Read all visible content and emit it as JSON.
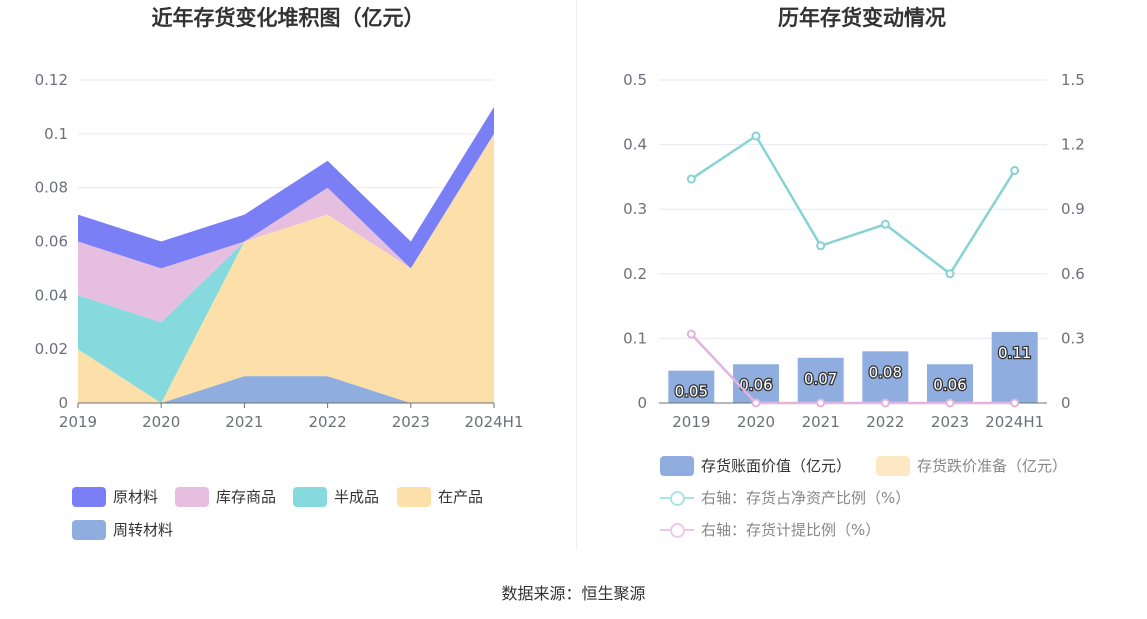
{
  "left_chart": {
    "title": "近年存货变化堆积图（亿元）",
    "legend": [
      {
        "label": "原材料",
        "color": "#7b7ff5"
      },
      {
        "label": "库存商品",
        "color": "#e6bfe0"
      },
      {
        "label": "半成品",
        "color": "#86d9dc"
      },
      {
        "label": "在产品",
        "color": "#fde0a9"
      },
      {
        "label": "周转材料",
        "color": "#8faedf"
      }
    ]
  },
  "right_chart": {
    "title": "历年存货变动情况",
    "legend": [
      {
        "label": "存货账面价值（亿元）",
        "color": "#8faedf",
        "kind": "bar"
      },
      {
        "label": "存货跌价准备（亿元）",
        "color": "#fde8c4",
        "kind": "bar"
      },
      {
        "label": "右轴：存货占净资产比例（%）",
        "color": "#a8e4e6",
        "kind": "line"
      },
      {
        "label": "右轴：存货计提比例（%）",
        "color": "#f1c6ec",
        "kind": "line"
      }
    ]
  },
  "source": "数据来源：恒生聚源",
  "chart_data": [
    {
      "type": "area",
      "stacked": true,
      "title": "近年存货变化堆积图（亿元）",
      "categories": [
        "2019",
        "2020",
        "2021",
        "2022",
        "2023",
        "2024H1"
      ],
      "ylim": [
        0,
        0.12
      ],
      "yticks": [
        "0",
        "0.02",
        "0.04",
        "0.06",
        "0.08",
        "0.1",
        "0.12"
      ],
      "grid": true,
      "legend_position": "bottom",
      "series": [
        {
          "name": "周转材料",
          "color": "#8faedf",
          "values": [
            0,
            0,
            0.01,
            0.01,
            0,
            0
          ]
        },
        {
          "name": "在产品",
          "color": "#fde0a9",
          "values": [
            0.02,
            0,
            0.05,
            0.06,
            0.05,
            0.1
          ]
        },
        {
          "name": "半成品",
          "color": "#86d9dc",
          "values": [
            0.02,
            0.03,
            0,
            0,
            0,
            0
          ]
        },
        {
          "name": "库存商品",
          "color": "#e6bfe0",
          "values": [
            0.02,
            0.02,
            0,
            0.01,
            0,
            0
          ]
        },
        {
          "name": "原材料",
          "color": "#7b7ff5",
          "values": [
            0.01,
            0.01,
            0.01,
            0.01,
            0.01,
            0.01
          ]
        }
      ]
    },
    {
      "type": "bar",
      "title": "历年存货变动情况",
      "categories": [
        "2019",
        "2020",
        "2021",
        "2022",
        "2023",
        "2024H1"
      ],
      "ylim": [
        0,
        0.5
      ],
      "yticks": [
        "0",
        "0.1",
        "0.2",
        "0.3",
        "0.4",
        "0.5"
      ],
      "y2lim": [
        0,
        1.5
      ],
      "y2ticks": [
        "0",
        "0.3",
        "0.6",
        "0.9",
        "1.2",
        "1.5"
      ],
      "grid": true,
      "legend_position": "bottom",
      "series": [
        {
          "name": "存货账面价值（亿元）",
          "type": "bar",
          "axis": "left",
          "color": "#8faedf",
          "values": [
            0.05,
            0.06,
            0.07,
            0.08,
            0.06,
            0.11
          ],
          "labels": [
            "0.05",
            "0.06",
            "0.07",
            "0.08",
            "0.06",
            "0.11"
          ]
        },
        {
          "name": "存货跌价准备（亿元）",
          "type": "bar",
          "axis": "left",
          "color": "#fde8c4",
          "values": [
            0,
            0,
            0,
            0,
            0,
            0
          ]
        },
        {
          "name": "右轴：存货占净资产比例（%）",
          "type": "line",
          "axis": "right",
          "color": "#86d3d6",
          "values": [
            1.04,
            1.24,
            0.73,
            0.83,
            0.6,
            1.08
          ]
        },
        {
          "name": "右轴：存货计提比例（%）",
          "type": "line",
          "axis": "right",
          "color": "#e3b4df",
          "values": [
            0.32,
            0,
            0,
            0,
            0,
            0
          ]
        }
      ]
    }
  ]
}
